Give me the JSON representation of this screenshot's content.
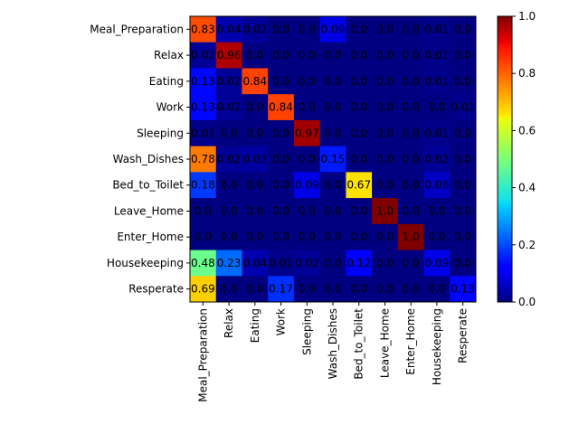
{
  "chart_data": {
    "type": "heatmap",
    "title": "",
    "xlabel": "",
    "ylabel": "",
    "row_labels": [
      "Meal_Preparation",
      "Relax",
      "Eating",
      "Work",
      "Sleeping",
      "Wash_Dishes",
      "Bed_to_Toilet",
      "Leave_Home",
      "Enter_Home",
      "Housekeeping",
      "Resperate"
    ],
    "col_labels": [
      "Meal_Preparation",
      "Relax",
      "Eating",
      "Work",
      "Sleeping",
      "Wash_Dishes",
      "Bed_to_Toilet",
      "Leave_Home",
      "Enter_Home",
      "Housekeeping",
      "Resperate"
    ],
    "values": [
      [
        0.83,
        0.04,
        0.02,
        0.0,
        0.0,
        0.09,
        0.0,
        0.0,
        0.0,
        0.01,
        0.0
      ],
      [
        0.02,
        0.96,
        0.0,
        0.0,
        0.0,
        0.0,
        0.0,
        0.0,
        0.0,
        0.01,
        0.0
      ],
      [
        0.13,
        0.02,
        0.84,
        0.0,
        0.0,
        0.0,
        0.0,
        0.0,
        0.0,
        0.01,
        0.0
      ],
      [
        0.13,
        0.02,
        0.0,
        0.84,
        0.0,
        0.0,
        0.0,
        0.0,
        0.0,
        0.0,
        0.01
      ],
      [
        0.01,
        0.0,
        0.0,
        0.0,
        0.97,
        0.0,
        0.0,
        0.0,
        0.0,
        0.01,
        0.0
      ],
      [
        0.78,
        0.02,
        0.03,
        0.0,
        0.0,
        0.15,
        0.0,
        0.0,
        0.0,
        0.02,
        0.0
      ],
      [
        0.18,
        0.0,
        0.0,
        0.0,
        0.09,
        0.0,
        0.67,
        0.0,
        0.0,
        0.06,
        0.0
      ],
      [
        0.0,
        0.0,
        0.0,
        0.0,
        0.0,
        0.0,
        0.0,
        1.0,
        0.0,
        0.0,
        0.0
      ],
      [
        0.0,
        0.0,
        0.0,
        0.0,
        0.0,
        0.0,
        0.0,
        0.0,
        1.0,
        0.0,
        0.0
      ],
      [
        0.48,
        0.23,
        0.04,
        0.01,
        0.02,
        0.0,
        0.12,
        0.0,
        0.0,
        0.09,
        0.0
      ],
      [
        0.69,
        0.0,
        0.0,
        0.17,
        0.0,
        0.0,
        0.0,
        0.0,
        0.0,
        0.0,
        0.13
      ]
    ],
    "cell_text": [
      [
        "0.83",
        "0.04",
        "0.02",
        "0.0",
        "0.0",
        "0.09",
        "0.0",
        "0.0",
        "0.0",
        "0.01",
        "0.0"
      ],
      [
        "0.02",
        "0.96",
        "0.0",
        "0.0",
        "0.0",
        "0.0",
        "0.0",
        "0.0",
        "0.0",
        "0.01",
        "0.0"
      ],
      [
        "0.13",
        "0.02",
        "0.84",
        "0.0",
        "0.0",
        "0.0",
        "0.0",
        "0.0",
        "0.0",
        "0.01",
        "0.0"
      ],
      [
        "0.13",
        "0.02",
        "0.0",
        "0.84",
        "0.0",
        "0.0",
        "0.0",
        "0.0",
        "0.0",
        "0.0",
        "0.01"
      ],
      [
        "0.01",
        "0.0",
        "0.0",
        "0.0",
        "0.97",
        "0.0",
        "0.0",
        "0.0",
        "0.0",
        "0.01",
        "0.0"
      ],
      [
        "0.78",
        "0.02",
        "0.03",
        "0.0",
        "0.0",
        "0.15",
        "0.0",
        "0.0",
        "0.0",
        "0.02",
        "0.0"
      ],
      [
        "0.18",
        "0.0",
        "0.0",
        "0.0",
        "0.09",
        "0.0",
        "0.67",
        "0.0",
        "0.0",
        "0.06",
        "0.0"
      ],
      [
        "0.0",
        "0.0",
        "0.0",
        "0.0",
        "0.0",
        "0.0",
        "0.0",
        "1.0",
        "0.0",
        "0.0",
        "0.0"
      ],
      [
        "0.0",
        "0.0",
        "0.0",
        "0.0",
        "0.0",
        "0.0",
        "0.0",
        "0.0",
        "1.0",
        "0.0",
        "0.0"
      ],
      [
        "0.48",
        "0.23",
        "0.04",
        "0.01",
        "0.02",
        "0.0",
        "0.12",
        "0.0",
        "0.0",
        "0.09",
        "0.0"
      ],
      [
        "0.69",
        "0.0",
        "0.0",
        "0.17",
        "0.0",
        "0.0",
        "0.0",
        "0.0",
        "0.0",
        "0.0",
        "0.13"
      ]
    ],
    "colorbar": {
      "range": [
        0.0,
        1.0
      ],
      "ticks": [
        "0.0",
        "0.2",
        "0.4",
        "0.6",
        "0.8",
        "1.0"
      ],
      "colormap": "jet"
    },
    "grid": false
  }
}
